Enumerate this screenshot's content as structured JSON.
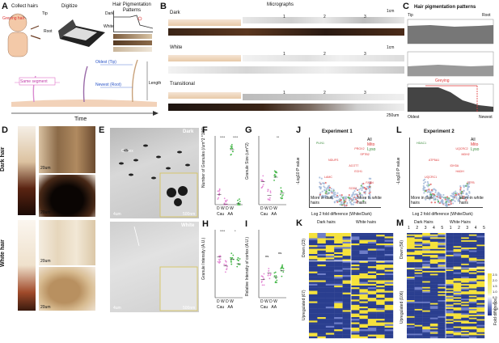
{
  "panels": {
    "A": {
      "letter": "A",
      "collect": "Collect hairs",
      "digitize": "Digitize",
      "patterns": "Hair Pigmentation Patterns",
      "greying_hair": "Greying hair",
      "tip": "Tip",
      "root": "Root",
      "dark": "Dark",
      "white": "White",
      "oldest": "Oldest (Tip)",
      "newest": "Newest (Root)",
      "same_segment": "Same segment",
      "length": "Length",
      "time": "Time"
    },
    "B": {
      "letter": "B",
      "micrographs": "Micrographs",
      "dark": "Dark",
      "white": "White",
      "transitional": "Transitional",
      "scale_1cm": "1cm",
      "scale_250": "250um",
      "n1": "1",
      "n2": "2",
      "n3": "3"
    },
    "C": {
      "letter": "C",
      "title": "Hair pigmentation patterns",
      "tip": "Tip",
      "root": "Root",
      "greying": "Greying",
      "oldest": "Oldest",
      "newest": "Newest"
    },
    "D": {
      "letter": "D",
      "dark_hair": "Dark hair",
      "white_hair": "White hair",
      "scale": "20um"
    },
    "E": {
      "letter": "E",
      "dark": "Dark",
      "white": "White",
      "cortex": "Cortex",
      "scale_a": "4um",
      "scale_b": "500nm"
    },
    "F": {
      "letter": "F",
      "ylabel": "Number of Granules (/um^2 *100)",
      "sig1": "****",
      "sig2": "****"
    },
    "G": {
      "letter": "G",
      "ylabel": "Granule Size (um^2)",
      "sig": "**"
    },
    "H": {
      "letter": "H",
      "ylabel": "Granule Intensity (A.U.)",
      "sig1": "****",
      "sig2": "*"
    },
    "I": {
      "letter": "I",
      "ylabel": "Relative Intensity of cortex (A.U.)",
      "ns1": "ns",
      "ns2": "ns"
    },
    "J": {
      "letter": "J",
      "title": "Experiment 1",
      "xlabel": "Log 2 fold difference (White/Dark)",
      "ylabel": "-Log10 P value",
      "more_dark": "More in dark hairs",
      "more_white": "More in white hairs",
      "legend": [
        "All",
        "Mito",
        "Lyso"
      ],
      "genes": [
        "PLIN1",
        "PROX2",
        "SPTB2",
        "NDUFS",
        "ACOT7",
        "ECH1",
        "LAMC",
        "FASN",
        "SOD2"
      ]
    },
    "K": {
      "letter": "K",
      "dark_hairs": "Dark hairs",
      "white_hairs": "White hairs",
      "down": "Down (23)",
      "up": "Upregulated (67)"
    },
    "L": {
      "letter": "L",
      "title": "Experiment 2",
      "xlabel": "Log 2 fold difference (White/Dark)",
      "ylabel": "-Log10 P value",
      "more_dark": "More in dark hairs",
      "more_white": "More in white hairs",
      "legend": [
        "All",
        "Mito",
        "Lyso"
      ],
      "genes": [
        "HDAC1",
        "UQCRC2",
        "MDH2",
        "ATP5A1",
        "IDH3A",
        "HADH",
        "UQCRC1",
        "ETFB"
      ]
    },
    "M": {
      "letter": "M",
      "dark_hairs": "Dark Hairs",
      "white_hairs": "White Hairs",
      "down": "Down (56)",
      "up": "Upregulated (106)",
      "cbar_label": "Fold difference",
      "cbar_ticks": [
        "2.5",
        "2.0",
        "1.5",
        "1.0",
        "0.5",
        "0.0",
        "-0.5"
      ],
      "cols": [
        "1",
        "2",
        "3",
        "4",
        "5",
        "1",
        "2",
        "3",
        "4",
        "5"
      ]
    }
  },
  "chart_data": [
    {
      "type": "scatter",
      "panel": "F",
      "categories": [
        "Cau D",
        "Cau W",
        "AA D",
        "AA W"
      ],
      "ylabel": "Number of Granules (/um^2 *100)",
      "ylim": [
        0,
        20
      ],
      "values": [
        3,
        0.2,
        16,
        0.3
      ]
    },
    {
      "type": "scatter",
      "panel": "G",
      "categories": [
        "Cau D",
        "Cau W",
        "AA D",
        "AA W"
      ],
      "ylabel": "Granule Size (um^2)",
      "ylim": [
        0,
        0.3
      ],
      "values": [
        0.1,
        0.04,
        0.12,
        0.05
      ]
    },
    {
      "type": "scatter",
      "panel": "H",
      "categories": [
        "Cau D",
        "Cau W",
        "AA D",
        "AA W"
      ],
      "ylabel": "Granule Intensity (A.U.)",
      "ylim": [
        0,
        150
      ],
      "values": [
        90,
        70,
        85,
        75
      ]
    },
    {
      "type": "scatter",
      "panel": "I",
      "categories": [
        "Cau D",
        "Cau W",
        "AA D",
        "AA W"
      ],
      "ylabel": "Relative Intensity of cortex (A.U.)",
      "ylim": [
        0,
        1.5
      ],
      "values": [
        0.4,
        0.55,
        0.45,
        0.6
      ]
    }
  ],
  "axis_ticks": {
    "F": [
      "0",
      "5",
      "10",
      "15",
      "20"
    ],
    "G": [
      "0.0",
      "0.1",
      "0.2",
      "0.3"
    ],
    "H": [
      "0",
      "50",
      "100",
      "150"
    ],
    "I": [
      "0.0",
      "0.5",
      "1.0",
      "1.5"
    ],
    "J_y": [
      "0",
      "2",
      "4",
      "6",
      "8",
      "10"
    ],
    "J_x": [
      "-2",
      "0",
      "2"
    ],
    "L_y": [
      "0",
      "2",
      "4",
      "6"
    ],
    "L_x": [
      "-6",
      "-3",
      "0",
      "3",
      "6"
    ],
    "dw": [
      "D",
      "W",
      "D",
      "W"
    ],
    "groups": [
      "Cau",
      "AA"
    ]
  },
  "colors": {
    "dark": "#2a1a12",
    "pink": "#e58bd6",
    "green": "#46b84a",
    "blue_heat": "#2a3e8f",
    "yellow_heat": "#f6e23a",
    "red": "#e03a3a"
  }
}
